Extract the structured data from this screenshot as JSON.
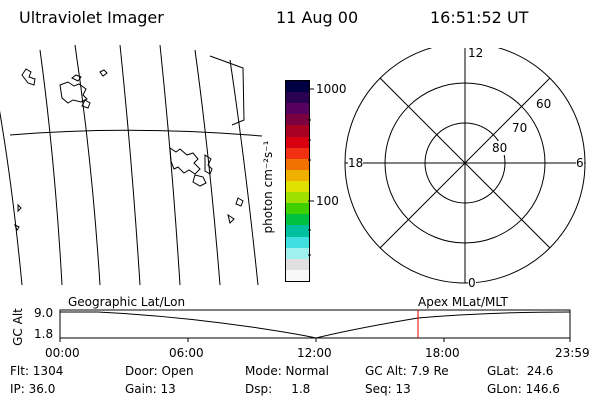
{
  "header": {
    "instrument": "Ultraviolet Imager",
    "date": "11 Aug 00",
    "time": "16:51:52 UT"
  },
  "colorbar": {
    "unit_label": "photon cm⁻²s⁻¹",
    "ticks": [
      "1000",
      "100"
    ],
    "colors": [
      "#000044",
      "#2a0050",
      "#560060",
      "#7a0040",
      "#a80020",
      "#d80010",
      "#f03010",
      "#f07000",
      "#f0b000",
      "#e0e000",
      "#a0e000",
      "#40d000",
      "#00c040",
      "#00c0a0",
      "#40e0e0",
      "#a0f0f0",
      "#e0e0e0",
      "#f8f8f8"
    ]
  },
  "polar_plot": {
    "top_label": "12",
    "right_label": "6",
    "left_label": "18",
    "bottom_label": "0",
    "ring_labels": [
      "60",
      "70",
      "80"
    ]
  },
  "timeline": {
    "left_title": "Geographic Lat/Lon",
    "right_title": "Apex MLat/MLT",
    "axis_label": "GC Alt",
    "y_ticks": [
      "9.0",
      "1.8"
    ],
    "x_ticks": [
      "00:00",
      "06:00",
      "12:00",
      "18:00",
      "23:59"
    ],
    "marker_color": "#e00000"
  },
  "info": {
    "flt": "Flt: 1304",
    "door": "Door: Open",
    "mode": "Mode: Normal",
    "gc_alt": "GC Alt: 7.9 Re",
    "glat": "GLat:  24.6",
    "ip": "IP: 36.0",
    "gain": "Gain: 13",
    "dsp": "Dsp:     1.8",
    "seq": "Seq: 13",
    "glon": "GLon: 146.6"
  }
}
